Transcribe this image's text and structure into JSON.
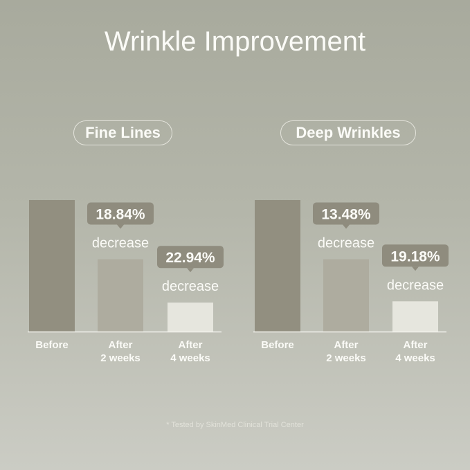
{
  "title": "Wrinkle Improvement",
  "footnote": "* Tested by SkinMed Clinical Trial Center",
  "colors": {
    "before": "#928f80",
    "after_2_weeks": "#aeac9f",
    "after_4_weeks": "#e6e6de",
    "callout": "#8f8c7e",
    "text": "#fbfbf7"
  },
  "chart_data": [
    {
      "type": "bar",
      "title": "Fine Lines",
      "categories": [
        "Before",
        "After\n2 weeks",
        "After\n4 weeks"
      ],
      "values": [
        100,
        55,
        22
      ],
      "annotations": [
        null,
        {
          "value": "18.84%",
          "label": "decrease"
        },
        {
          "value": "22.94%",
          "label": "decrease"
        }
      ],
      "grid": false
    },
    {
      "type": "bar",
      "title": "Deep Wrinkles",
      "categories": [
        "Before",
        "After\n2 weeks",
        "After\n4 weeks"
      ],
      "values": [
        100,
        55,
        23
      ],
      "annotations": [
        null,
        {
          "value": "13.48%",
          "label": "decrease"
        },
        {
          "value": "19.18%",
          "label": "decrease"
        }
      ],
      "grid": false
    }
  ]
}
